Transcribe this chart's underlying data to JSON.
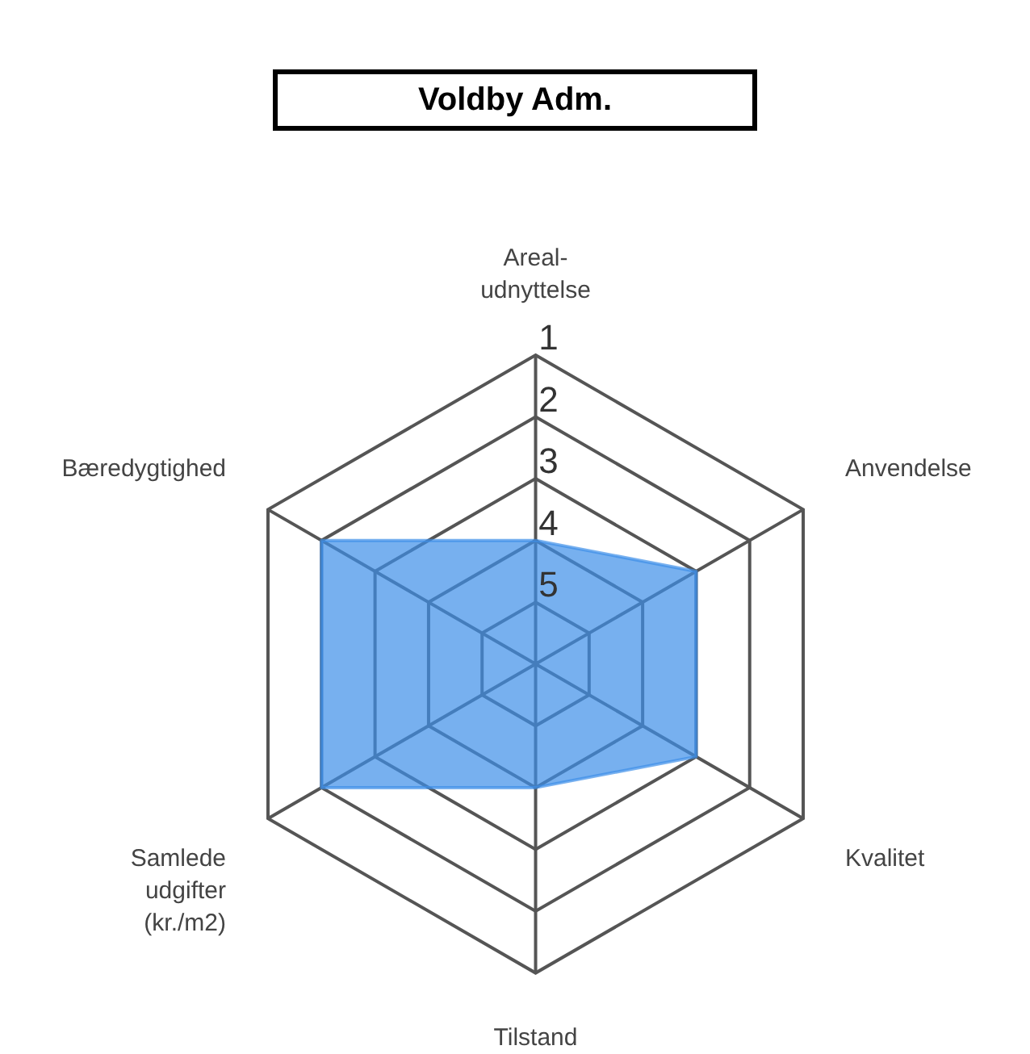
{
  "chart_data": {
    "type": "radar",
    "title": "Voldby Adm.",
    "categories": [
      "Areal-udnyttelse",
      "Anvendelse",
      "Kvalitet",
      "Tilstand",
      "Samlede udgifter (kr./m2)",
      "Bæredygtighed"
    ],
    "series": [
      {
        "color": "#3d8fe8",
        "values": [
          4,
          3,
          3,
          4,
          2,
          2
        ]
      }
    ],
    "ylim": [
      6,
      1
    ],
    "yticks": [
      1,
      2,
      3,
      4,
      5
    ],
    "grid": true
  }
}
